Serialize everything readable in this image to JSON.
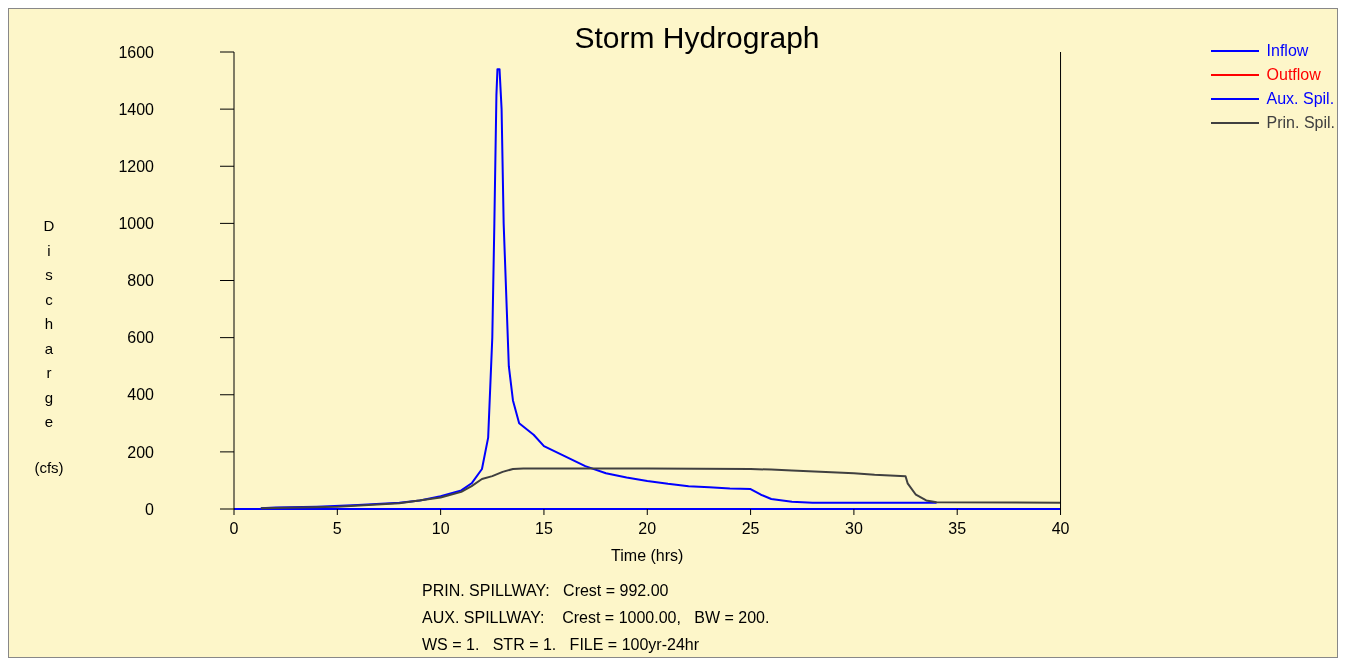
{
  "chart_data": {
    "type": "line",
    "title": "Storm Hydrograph",
    "xlabel": "Time (hrs)",
    "ylabel": "Discharge (cfs)",
    "xlim": [
      0,
      40
    ],
    "xticks": [
      0,
      5,
      10,
      15,
      20,
      25,
      30,
      35,
      40
    ],
    "ylim": [
      0,
      1600
    ],
    "yticks": [
      0,
      200,
      400,
      600,
      800,
      1000,
      1200,
      1400,
      1600
    ],
    "grid": false,
    "legend": "top right",
    "marker": "none",
    "line_style": "solid",
    "series": [
      {
        "name": "Inflow",
        "color": "#0000ff",
        "x": [
          1.3,
          2,
          4,
          6,
          8,
          9,
          10,
          11,
          11.5,
          12,
          12.3,
          12.5,
          12.6,
          12.7,
          12.75,
          12.85,
          12.95,
          13.05,
          13.2,
          13.3,
          13.5,
          13.8,
          14.5,
          15,
          16,
          17,
          18,
          19,
          20,
          21,
          22,
          23,
          24,
          25,
          25.5,
          26,
          27,
          28,
          30,
          32,
          34
        ],
        "values": [
          3,
          5,
          8,
          14,
          22,
          30,
          45,
          65,
          90,
          140,
          250,
          600,
          1000,
          1450,
          1540,
          1540,
          1400,
          1000,
          700,
          500,
          380,
          300,
          260,
          220,
          185,
          150,
          125,
          110,
          98,
          88,
          80,
          76,
          72,
          70,
          50,
          35,
          25,
          22,
          22,
          22,
          22
        ]
      },
      {
        "name": "Outflow",
        "color": "#ff0000"
      },
      {
        "name": "Aux. Spil.",
        "color": "#0000ff",
        "x": [
          0,
          40
        ],
        "values": [
          0,
          0
        ]
      },
      {
        "name": "Prin. Spil.",
        "color": "#404040",
        "x": [
          1.3,
          5,
          8,
          10,
          11,
          11.5,
          12,
          12.5,
          13,
          13.5,
          14,
          20,
          25,
          26,
          27,
          30,
          31,
          32.5,
          32.6,
          33,
          33.5,
          34,
          40
        ],
        "values": [
          3,
          8,
          20,
          40,
          60,
          80,
          105,
          115,
          130,
          140,
          142,
          142,
          140,
          138,
          135,
          125,
          120,
          115,
          90,
          50,
          30,
          24,
          22
        ]
      }
    ],
    "annotations": [
      "PRIN. SPILLWAY:   Crest = 992.00",
      "AUX. SPILLWAY:    Crest = 1000.00,   BW = 200.",
      "WS = 1.   STR = 1.   FILE = 100yr-24hr"
    ]
  }
}
